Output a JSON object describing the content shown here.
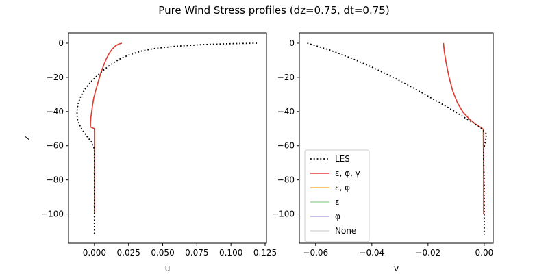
{
  "figure": {
    "title": "Pure Wind Stress profiles (dz=0.75, dt=0.75)"
  },
  "chart_data": [
    {
      "type": "line",
      "panel": "left",
      "xlabel": "u",
      "ylabel": "z",
      "xlim": [
        -0.019,
        0.126
      ],
      "ylim": [
        -117,
        6
      ],
      "xticks": [
        "0.000",
        "0.025",
        "0.050",
        "0.075",
        "0.100",
        "0.125"
      ],
      "xtick_values": [
        0.0,
        0.025,
        0.05,
        0.075,
        0.1,
        0.125
      ],
      "yticks": [
        "−100",
        "−80",
        "−60",
        "−40",
        "−20",
        "0"
      ],
      "ytick_values": [
        -100,
        -80,
        -60,
        -40,
        -20,
        0
      ],
      "legend": null,
      "series": [
        {
          "name": "LES",
          "color": "#000000",
          "style": "dotted",
          "x": [
            0.119,
            0.1,
            0.08,
            0.06,
            0.045,
            0.035,
            0.025,
            0.018,
            0.012,
            0.007,
            0.002,
            -0.003,
            -0.007,
            -0.01,
            -0.012,
            -0.0128,
            -0.0125,
            -0.01,
            -0.006,
            -0.002,
            0.0,
            0.0,
            0.0
          ],
          "y": [
            0,
            -0.3,
            -0.8,
            -1.8,
            -3,
            -4.5,
            -7,
            -9.5,
            -12.5,
            -15.5,
            -19,
            -23,
            -27,
            -31,
            -35.5,
            -40,
            -44.5,
            -49.5,
            -54,
            -58,
            -62,
            -80,
            -112
          ]
        },
        {
          "name": "ε, φ, γ",
          "color": "#e23a3a",
          "style": "solid",
          "x": [
            0.02,
            0.018,
            0.0155,
            0.013,
            0.0108,
            0.0085,
            0.0065,
            0.0045,
            0.0028,
            0.0012,
            -0.0005,
            -0.0015,
            -0.0027,
            -0.003,
            0.0,
            0.0,
            0.0
          ],
          "y": [
            0,
            -0.5,
            -1.5,
            -3.5,
            -6,
            -9.5,
            -13.5,
            -18,
            -22.5,
            -27,
            -32,
            -37,
            -44,
            -49,
            -50,
            -51.5,
            -100
          ]
        },
        {
          "name": "ε, φ",
          "color": "#f5b041",
          "style": "solid",
          "x": [
            0.02,
            0.018,
            0.0155,
            0.013,
            0.0108,
            0.0085,
            0.0065,
            0.0045,
            0.0028,
            0.0012,
            -0.0005,
            -0.0015,
            -0.0027,
            -0.003,
            0.0,
            0.0,
            0.0
          ],
          "y": [
            0,
            -0.5,
            -1.5,
            -3.5,
            -6,
            -9.5,
            -13.5,
            -18,
            -22.5,
            -27,
            -32,
            -37,
            -44,
            -49,
            -50,
            -51.5,
            -100
          ]
        },
        {
          "name": "ε",
          "color": "#a6d8a6",
          "style": "solid",
          "x": [
            0.02,
            0.018,
            0.0155,
            0.013,
            0.0108,
            0.0085,
            0.0065,
            0.0045,
            0.0028,
            0.0012,
            -0.0005,
            -0.0015,
            -0.0027,
            -0.003,
            0.0,
            0.0,
            0.0
          ],
          "y": [
            0,
            -0.5,
            -1.5,
            -3.5,
            -6,
            -9.5,
            -13.5,
            -18,
            -22.5,
            -27,
            -32,
            -37,
            -44,
            -49,
            -50,
            -51.5,
            -100
          ]
        },
        {
          "name": "φ",
          "color": "#b6a6e6",
          "style": "solid",
          "x": [
            0.02,
            0.018,
            0.0155,
            0.013,
            0.0108,
            0.0085,
            0.0065,
            0.0045,
            0.0028,
            0.0012,
            -0.0005,
            -0.0015,
            -0.0027,
            -0.003,
            0.0,
            0.0,
            0.0
          ],
          "y": [
            0,
            -0.5,
            -1.5,
            -3.5,
            -6,
            -9.5,
            -13.5,
            -18,
            -22.5,
            -27,
            -32,
            -37,
            -44,
            -49,
            -50,
            -51.5,
            -100
          ]
        },
        {
          "name": "None",
          "color": "#d8d8d8",
          "style": "solid",
          "x": [
            0.02,
            0.018,
            0.0155,
            0.013,
            0.0108,
            0.0085,
            0.0065,
            0.0045,
            0.0028,
            0.0012,
            -0.0005,
            -0.0015,
            -0.0027,
            -0.003,
            0.0,
            0.0,
            0.0
          ],
          "y": [
            0,
            -0.5,
            -1.5,
            -3.5,
            -6,
            -9.5,
            -13.5,
            -18,
            -22.5,
            -27,
            -32,
            -37,
            -44,
            -49,
            -50,
            -51.5,
            -100
          ]
        }
      ]
    },
    {
      "type": "line",
      "panel": "right",
      "xlabel": "v",
      "ylabel": "",
      "xlim": [
        -0.0658,
        0.0032
      ],
      "ylim": [
        -117,
        6
      ],
      "xticks": [
        "−0.06",
        "−0.04",
        "−0.02",
        "0.00"
      ],
      "xtick_values": [
        -0.06,
        -0.04,
        -0.02,
        0.0
      ],
      "yticks": [
        "−100",
        "−80",
        "−60",
        "−40",
        "−20",
        "0"
      ],
      "ytick_values": [
        -100,
        -80,
        -60,
        -40,
        -20,
        0
      ],
      "legend": "lower-left",
      "series": [
        {
          "name": "LES",
          "color": "#000000",
          "style": "dotted",
          "x": [
            -0.063,
            -0.055,
            -0.047,
            -0.04,
            -0.033,
            -0.026,
            -0.019,
            -0.013,
            -0.008,
            -0.004,
            -0.001,
            0.0008,
            0.0005,
            -0.0002,
            -0.0002,
            0.0,
            0.0
          ],
          "y": [
            0,
            -4,
            -9,
            -14,
            -19.5,
            -25.5,
            -32,
            -37.5,
            -42.5,
            -46.5,
            -50,
            -53,
            -57,
            -62,
            -68,
            -80,
            -112
          ]
        },
        {
          "name": "ε, φ, γ",
          "color": "#e23a3a",
          "style": "solid",
          "x": [
            -0.0145,
            -0.0142,
            -0.0135,
            -0.0125,
            -0.0112,
            -0.0095,
            -0.0075,
            -0.0052,
            -0.003,
            -0.001,
            -0.0003,
            -0.0003,
            -0.0002
          ],
          "y": [
            0,
            -5,
            -12,
            -20,
            -28,
            -35,
            -40.5,
            -44.5,
            -47.5,
            -49.5,
            -50.5,
            -52,
            -100
          ]
        },
        {
          "name": "ε, φ",
          "color": "#f5b041",
          "style": "solid",
          "x": [
            -0.0145,
            -0.0142,
            -0.0135,
            -0.0125,
            -0.0112,
            -0.0095,
            -0.0075,
            -0.0052,
            -0.003,
            -0.001,
            -0.0003,
            -0.0003,
            -0.0002
          ],
          "y": [
            0,
            -5,
            -12,
            -20,
            -28,
            -35,
            -40.5,
            -44.5,
            -47.5,
            -49.5,
            -50.5,
            -52,
            -100
          ]
        },
        {
          "name": "ε",
          "color": "#a6d8a6",
          "style": "solid",
          "x": [
            -0.0145,
            -0.0142,
            -0.0135,
            -0.0125,
            -0.0112,
            -0.0095,
            -0.0075,
            -0.0052,
            -0.003,
            -0.001,
            -0.0003,
            -0.0003,
            -0.0002
          ],
          "y": [
            0,
            -5,
            -12,
            -20,
            -28,
            -35,
            -40.5,
            -44.5,
            -47.5,
            -49.5,
            -50.5,
            -52,
            -100
          ]
        },
        {
          "name": "φ",
          "color": "#b6a6e6",
          "style": "solid",
          "x": [
            -0.0145,
            -0.0142,
            -0.0135,
            -0.0125,
            -0.0112,
            -0.0095,
            -0.0075,
            -0.0052,
            -0.003,
            -0.001,
            -0.0003,
            -0.0003,
            -0.0002
          ],
          "y": [
            0,
            -5,
            -12,
            -20,
            -28,
            -35,
            -40.5,
            -44.5,
            -47.5,
            -49.5,
            -50.5,
            -52,
            -100
          ]
        },
        {
          "name": "None",
          "color": "#d8d8d8",
          "style": "solid",
          "x": [
            -0.0145,
            -0.0142,
            -0.0135,
            -0.0125,
            -0.0112,
            -0.0095,
            -0.0075,
            -0.0052,
            -0.003,
            -0.001,
            -0.0003,
            -0.0003,
            -0.0002
          ],
          "y": [
            0,
            -5,
            -12,
            -20,
            -28,
            -35,
            -40.5,
            -44.5,
            -47.5,
            -49.5,
            -50.5,
            -52,
            -100
          ]
        }
      ]
    }
  ]
}
